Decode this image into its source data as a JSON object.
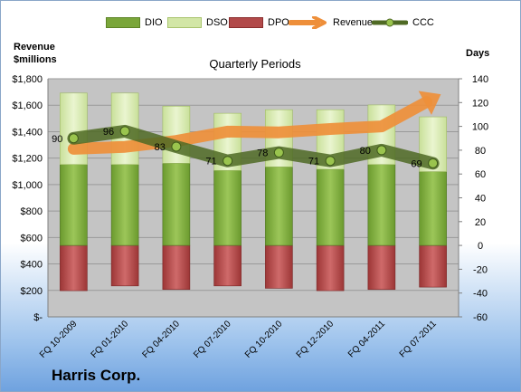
{
  "chart_data": {
    "type": "bar",
    "title": "Quarterly Periods",
    "company": "Harris Corp.",
    "y_left_label": [
      "Revenue",
      "$millions"
    ],
    "y_right_label": "Days",
    "y_left_ticks": [
      "$1,800",
      "$1,600",
      "$1,400",
      "$1,200",
      "$1,000",
      "$800",
      "$600",
      "$400",
      "$200",
      "$-"
    ],
    "y_right_ticks": [
      "140",
      "120",
      "100",
      "80",
      "60",
      "40",
      "20",
      "0",
      "-20",
      "-40",
      "-60"
    ],
    "y_left_range": [
      0,
      1800
    ],
    "y_right_range": [
      -60,
      140
    ],
    "categories": [
      "FQ 10-2009",
      "FQ 01-2010",
      "FQ 04-2010",
      "FQ 07-2010",
      "FQ 10-2010",
      "FQ 12-2010",
      "FQ 04-2011",
      "FQ 07-2011"
    ],
    "series": [
      {
        "name": "DIO",
        "values": [
          68,
          68,
          69,
          63,
          66,
          64,
          68,
          62
        ],
        "axis": "right",
        "color": "#7aa63a"
      },
      {
        "name": "DSO",
        "values": [
          60,
          60,
          48,
          48,
          48,
          50,
          50,
          46
        ],
        "axis": "right",
        "color": "#d2e6a6"
      },
      {
        "name": "DPO",
        "values": [
          -38,
          -34,
          -37,
          -34,
          -36,
          -38,
          -37,
          -35
        ],
        "axis": "right",
        "color": "#b24a4a"
      },
      {
        "name": "Revenue",
        "values": [
          1270,
          1285,
          1330,
          1400,
          1395,
          1420,
          1440,
          1650
        ],
        "axis": "left",
        "color": "#ee8f3a"
      },
      {
        "name": "CCC",
        "values": [
          90,
          96,
          83,
          71,
          78,
          71,
          80,
          69
        ],
        "axis": "right",
        "color": "#5b7a2b"
      }
    ],
    "ccc_labels": [
      "90",
      "96",
      "83",
      "71",
      "78",
      "71",
      "80",
      "69"
    ],
    "plot_background": "#c4c4c4",
    "grid": true,
    "legend_position": "top"
  }
}
